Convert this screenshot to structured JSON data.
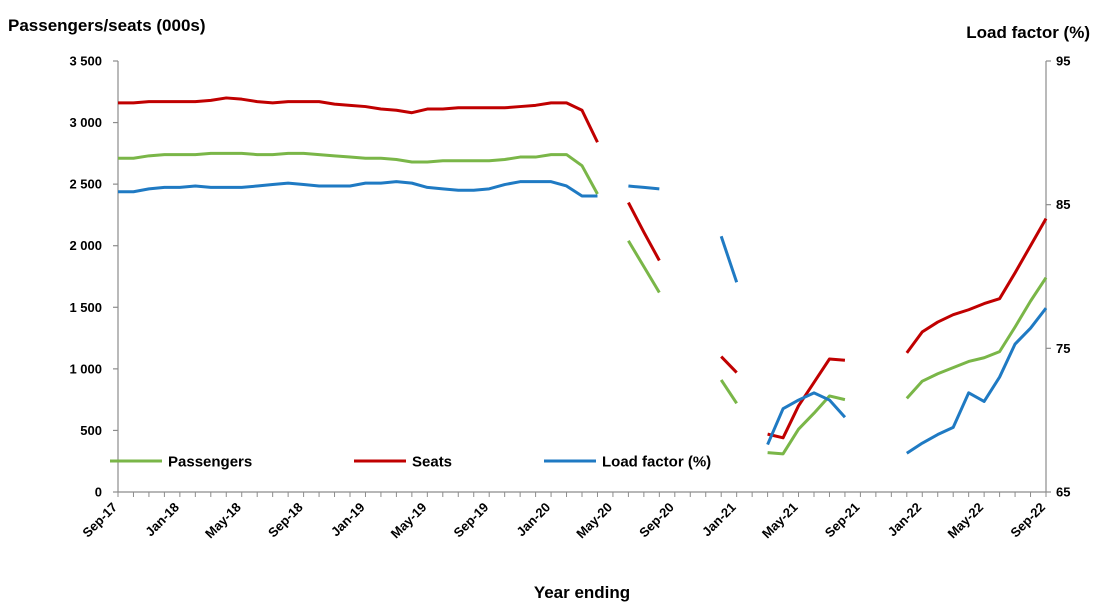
{
  "chart_data": {
    "type": "line",
    "left_axis_title": "Passengers/seats (000s)",
    "right_axis_title": "Load factor (%)",
    "x_axis_title": "Year ending",
    "left_ylim": [
      0,
      3500
    ],
    "left_ticks": [
      0,
      500,
      1000,
      1500,
      2000,
      2500,
      3000,
      3500
    ],
    "left_tick_labels": [
      "0",
      "500",
      "1 000",
      "1 500",
      "2 000",
      "2 500",
      "3 000",
      "3 500"
    ],
    "right_ylim": [
      65,
      95
    ],
    "right_ticks": [
      65,
      75,
      85,
      95
    ],
    "right_tick_labels": [
      "65",
      "75",
      "85",
      "95"
    ],
    "x_tick_labels": [
      "Sep-17",
      "Jan-18",
      "May-18",
      "Sep-18",
      "Jan-19",
      "May-19",
      "Sep-19",
      "Jan-20",
      "May-20",
      "Sep-20",
      "Jan-21",
      "May-21",
      "Sep-21",
      "Jan-22",
      "May-22",
      "Sep-22"
    ],
    "x_months": [
      "Sep-17",
      "Oct-17",
      "Nov-17",
      "Dec-17",
      "Jan-18",
      "Feb-18",
      "Mar-18",
      "Apr-18",
      "May-18",
      "Jun-18",
      "Jul-18",
      "Aug-18",
      "Sep-18",
      "Oct-18",
      "Nov-18",
      "Dec-18",
      "Jan-19",
      "Feb-19",
      "Mar-19",
      "Apr-19",
      "May-19",
      "Jun-19",
      "Jul-19",
      "Aug-19",
      "Sep-19",
      "Oct-19",
      "Nov-19",
      "Dec-19",
      "Jan-20",
      "Feb-20",
      "Mar-20",
      "Apr-20",
      "May-20",
      "Jun-20",
      "Jul-20",
      "Aug-20",
      "Sep-20",
      "Oct-20",
      "Nov-20",
      "Dec-20",
      "Jan-21",
      "Feb-21",
      "Mar-21",
      "Apr-21",
      "May-21",
      "Jun-21",
      "Jul-21",
      "Aug-21",
      "Sep-21",
      "Oct-21",
      "Nov-21",
      "Dec-21",
      "Jan-22",
      "Feb-22",
      "Mar-22",
      "Apr-22",
      "May-22",
      "Jun-22",
      "Jul-22",
      "Aug-22",
      "Sep-22"
    ],
    "legend_position": "bottom-left inside plot",
    "grid": false,
    "series": [
      {
        "name": "Seats",
        "axis": "left",
        "color": "#c00000",
        "values": [
          3160,
          3160,
          3170,
          3170,
          3170,
          3170,
          3180,
          3200,
          3190,
          3170,
          3160,
          3170,
          3170,
          3170,
          3150,
          3140,
          3130,
          3110,
          3100,
          3080,
          3110,
          3110,
          3120,
          3120,
          3120,
          3120,
          3130,
          3140,
          3160,
          3160,
          3100,
          2840,
          null,
          2350,
          2110,
          1880,
          null,
          null,
          null,
          1100,
          970,
          null,
          470,
          440,
          700,
          890,
          1080,
          1070,
          null,
          null,
          null,
          1130,
          1300,
          1380,
          1440,
          1480,
          1530,
          1570,
          1780,
          2000,
          2220
        ]
      },
      {
        "name": "Passengers",
        "axis": "left",
        "color": "#7ab648",
        "values": [
          2710,
          2710,
          2730,
          2740,
          2740,
          2740,
          2750,
          2750,
          2750,
          2740,
          2740,
          2750,
          2750,
          2740,
          2730,
          2720,
          2710,
          2710,
          2700,
          2680,
          2680,
          2690,
          2690,
          2690,
          2690,
          2700,
          2720,
          2720,
          2740,
          2740,
          2650,
          2420,
          null,
          2040,
          1830,
          1620,
          null,
          null,
          null,
          910,
          720,
          null,
          320,
          310,
          510,
          640,
          780,
          750,
          null,
          null,
          null,
          760,
          900,
          960,
          1010,
          1060,
          1090,
          1140,
          1340,
          1550,
          1740
        ]
      },
      {
        "name": "Load factor (%)",
        "axis": "right",
        "color": "#1f7ac3",
        "values": [
          85.9,
          85.9,
          86.1,
          86.2,
          86.2,
          86.3,
          86.2,
          86.2,
          86.2,
          86.3,
          86.4,
          86.5,
          86.4,
          86.3,
          86.3,
          86.3,
          86.5,
          86.5,
          86.6,
          86.5,
          86.2,
          86.1,
          86.0,
          86.0,
          86.1,
          86.4,
          86.6,
          86.6,
          86.6,
          86.3,
          85.6,
          85.6,
          null,
          86.3,
          86.2,
          86.1,
          null,
          null,
          null,
          82.8,
          79.6,
          null,
          68.3,
          70.8,
          71.4,
          71.9,
          71.4,
          70.2,
          null,
          null,
          null,
          67.7,
          68.4,
          69.0,
          69.5,
          71.9,
          71.3,
          73.0,
          75.3,
          76.4,
          77.8
        ]
      }
    ]
  },
  "legend_order": [
    "Passengers",
    "Seats",
    "Load factor (%)"
  ]
}
